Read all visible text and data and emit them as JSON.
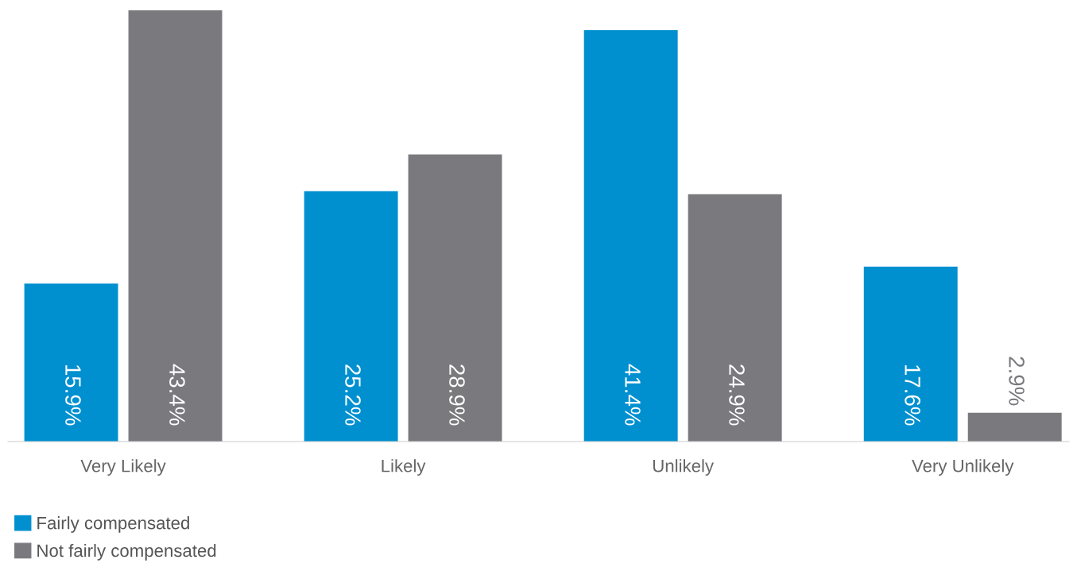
{
  "chart_data": {
    "type": "bar",
    "categories": [
      "Very Likely",
      "Likely",
      "Unlikely",
      "Very Unlikely"
    ],
    "series": [
      {
        "name": "Fairly compensated",
        "color": "#0090d0",
        "values": [
          15.9,
          25.2,
          41.4,
          17.6
        ],
        "value_labels": [
          "15.9%",
          "25.2%",
          "41.4%",
          "17.6%"
        ]
      },
      {
        "name": "Not fairly compensated",
        "color": "#7a797e",
        "values": [
          43.4,
          28.9,
          24.9,
          2.9
        ],
        "value_labels": [
          "43.4%",
          "28.9%",
          "24.9%",
          "2.9%"
        ]
      }
    ],
    "grid": false,
    "legend": "bottom left"
  }
}
